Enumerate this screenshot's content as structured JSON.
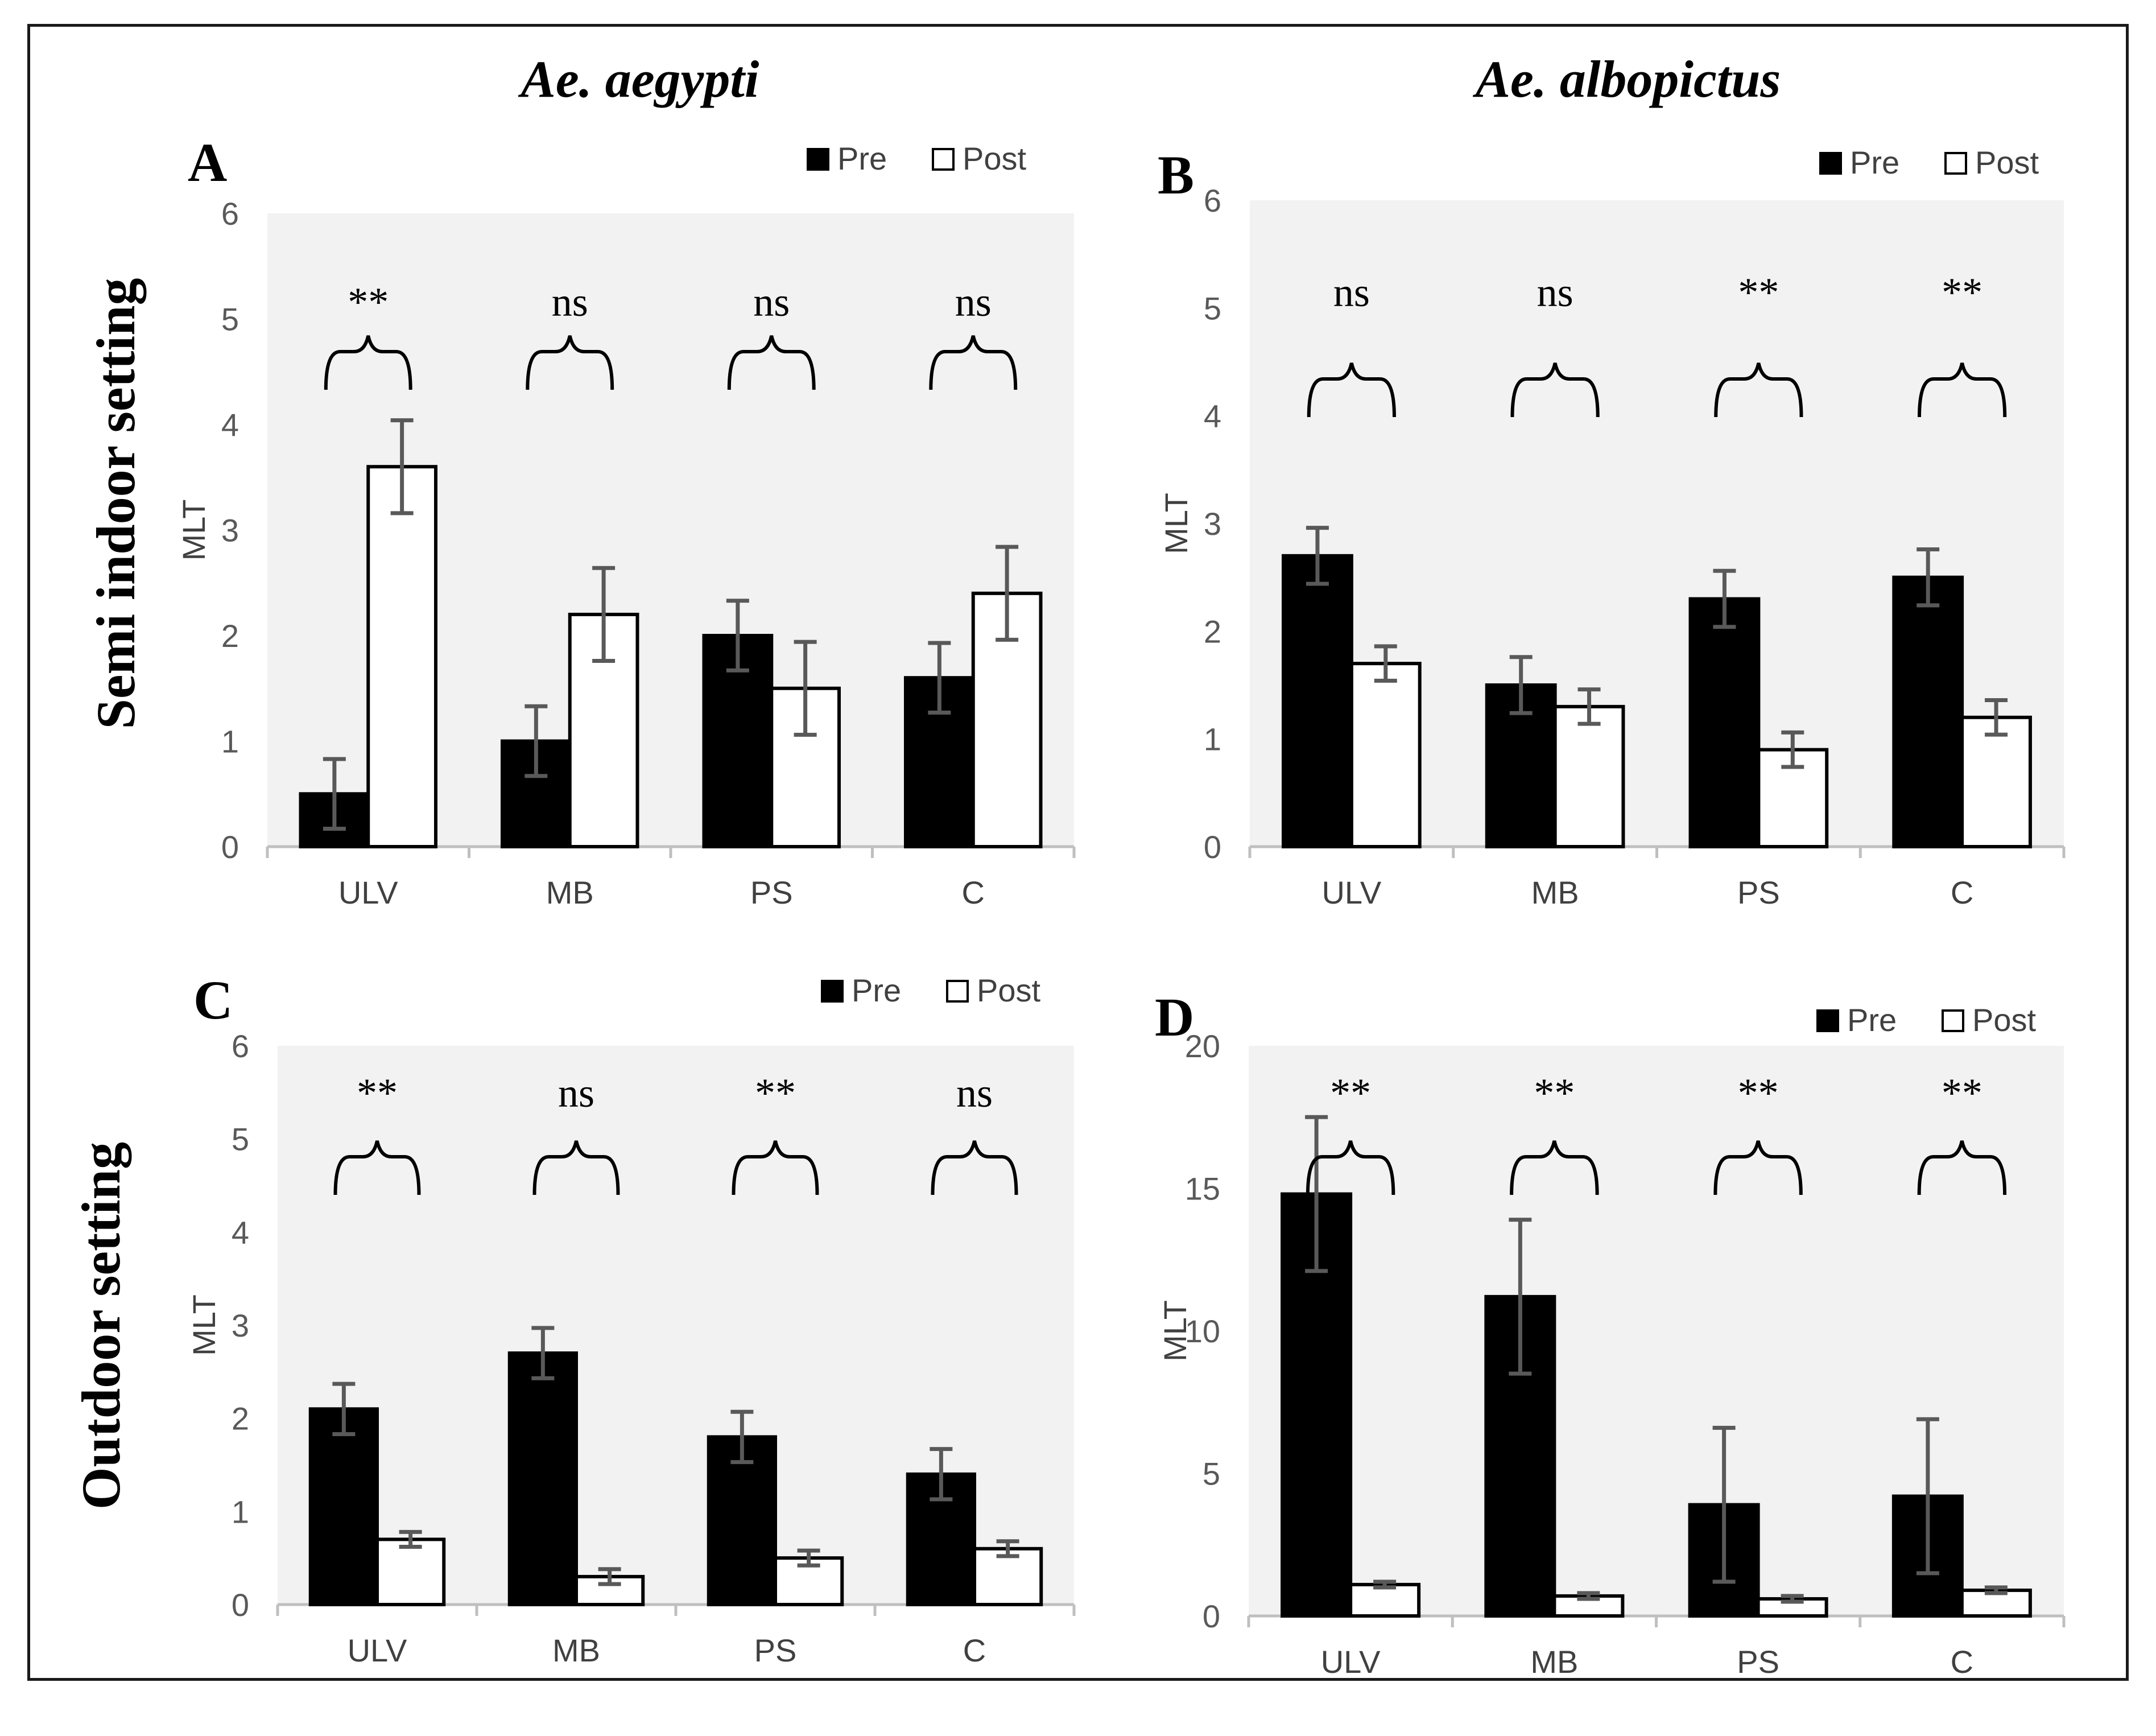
{
  "column_titles": [
    "Ae. aegypti",
    "Ae. albopictus"
  ],
  "row_titles": [
    "Semi indoor setting",
    "Outdoor setting"
  ],
  "chart_data": [
    {
      "type": "bar",
      "panel": "A",
      "categories": [
        "ULV",
        "MB",
        "PS",
        "C"
      ],
      "series": [
        {
          "name": "Pre",
          "values": [
            0.5,
            1.0,
            2.0,
            1.6
          ],
          "errors": [
            0.33,
            0.33,
            0.33,
            0.33
          ]
        },
        {
          "name": "Post",
          "values": [
            3.6,
            2.2,
            1.5,
            2.4
          ],
          "errors": [
            0.44,
            0.44,
            0.44,
            0.44
          ]
        }
      ],
      "significance": [
        "**",
        "ns",
        "ns",
        "ns"
      ],
      "ylabel": "MLT",
      "ylim": [
        0,
        6
      ],
      "yticks": [
        0,
        1,
        2,
        3,
        4,
        5,
        6
      ],
      "legend": "top-right"
    },
    {
      "type": "bar",
      "panel": "B",
      "categories": [
        "ULV",
        "MB",
        "PS",
        "C"
      ],
      "series": [
        {
          "name": "Pre",
          "values": [
            2.7,
            1.5,
            2.3,
            2.5
          ],
          "errors": [
            0.26,
            0.26,
            0.26,
            0.26
          ]
        },
        {
          "name": "Post",
          "values": [
            1.7,
            1.3,
            0.9,
            1.2
          ],
          "errors": [
            0.16,
            0.16,
            0.16,
            0.16
          ]
        }
      ],
      "significance": [
        "ns",
        "ns",
        "**",
        "**"
      ],
      "ylabel": "MLT",
      "ylim": [
        0,
        6
      ],
      "yticks": [
        0,
        1,
        2,
        3,
        4,
        5,
        6
      ],
      "legend": "top-right"
    },
    {
      "type": "bar",
      "panel": "C",
      "categories": [
        "ULV",
        "MB",
        "PS",
        "C"
      ],
      "series": [
        {
          "name": "Pre",
          "values": [
            2.1,
            2.7,
            1.8,
            1.4
          ],
          "errors": [
            0.27,
            0.27,
            0.27,
            0.27
          ]
        },
        {
          "name": "Post",
          "values": [
            0.7,
            0.3,
            0.5,
            0.6
          ],
          "errors": [
            0.08,
            0.08,
            0.08,
            0.08
          ]
        }
      ],
      "significance": [
        "**",
        "ns",
        "**",
        "ns"
      ],
      "ylabel": "MLT",
      "ylim": [
        0,
        6
      ],
      "yticks": [
        0,
        1,
        2,
        3,
        4,
        5,
        6
      ],
      "legend": "top-right"
    },
    {
      "type": "bar",
      "panel": "D",
      "categories": [
        "ULV",
        "MB",
        "PS",
        "C"
      ],
      "series": [
        {
          "name": "Pre",
          "values": [
            14.8,
            11.2,
            3.9,
            4.2
          ],
          "errors": [
            2.7,
            2.7,
            2.7,
            2.7
          ]
        },
        {
          "name": "Post",
          "values": [
            1.1,
            0.7,
            0.6,
            0.9
          ],
          "errors": [
            0.1,
            0.1,
            0.1,
            0.1
          ]
        }
      ],
      "significance": [
        "**",
        "**",
        "**",
        "**"
      ],
      "ylabel": "MLT",
      "ylim": [
        0,
        20
      ],
      "yticks": [
        0,
        5,
        10,
        15,
        20
      ],
      "legend": "top-right"
    }
  ]
}
